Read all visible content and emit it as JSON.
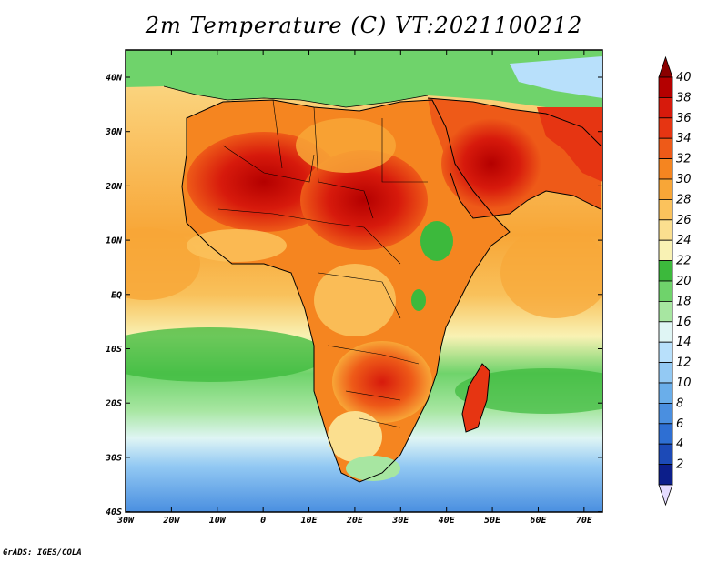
{
  "title": "2m Temperature (C) VT:2021100212",
  "credit": "GrADS: IGES/COLA",
  "map": {
    "lon_ticks": [
      "30W",
      "20W",
      "10W",
      "0",
      "10E",
      "20E",
      "30E",
      "40E",
      "50E",
      "60E",
      "70E"
    ],
    "lat_ticks": [
      "40N",
      "30N",
      "20N",
      "10N",
      "EQ",
      "10S",
      "20S",
      "30S",
      "40S"
    ],
    "variable": "2m Temperature",
    "units": "C",
    "valid_time": "2021100212"
  },
  "colorbar": {
    "labels": [
      "40",
      "38",
      "36",
      "34",
      "32",
      "30",
      "28",
      "26",
      "24",
      "22",
      "20",
      "18",
      "16",
      "14",
      "12",
      "10",
      "8",
      "6",
      "4",
      "2"
    ],
    "colors": [
      "#b40000",
      "#d71a0c",
      "#e63512",
      "#ee5a18",
      "#f58520",
      "#f8a637",
      "#fbc25c",
      "#fbdf8f",
      "#f9f2b4",
      "#3cb93c",
      "#6fd36b",
      "#a7e6a1",
      "#dff5f4",
      "#b8e0fb",
      "#93c9f3",
      "#6aaeea",
      "#4a8fe0",
      "#2e6fd3",
      "#1c4ab7",
      "#0c1e8a"
    ],
    "top_color": "#8a0000",
    "bottom_color": "#e5dcff"
  }
}
